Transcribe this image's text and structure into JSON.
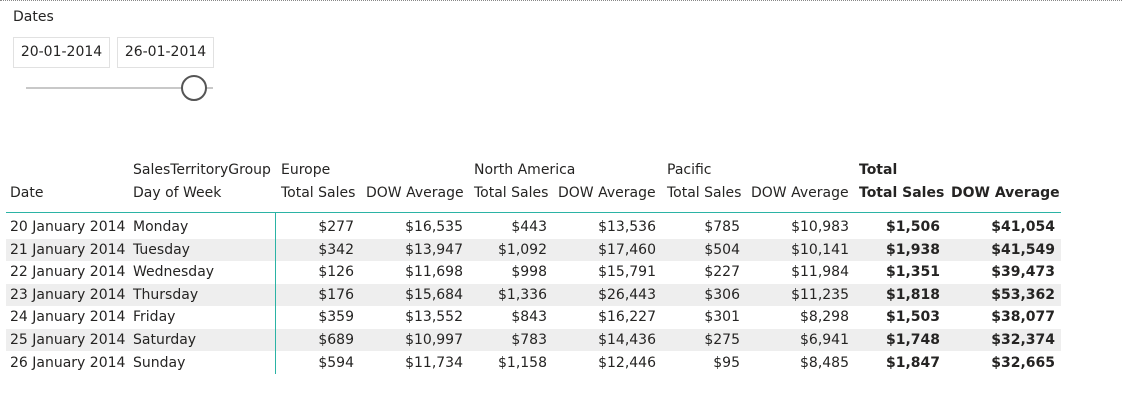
{
  "slicer": {
    "title": "Dates",
    "start": "20-01-2014",
    "end": "26-01-2014"
  },
  "table": {
    "row_header_group": "SalesTerritoryGroup",
    "row_headers": [
      "Date",
      "Day of Week"
    ],
    "groups": [
      {
        "name": "Europe",
        "columns": [
          "Total Sales",
          "DOW Average"
        ]
      },
      {
        "name": "North America",
        "columns": [
          "Total Sales",
          "DOW Average"
        ]
      },
      {
        "name": "Pacific",
        "columns": [
          "Total Sales",
          "DOW Average"
        ]
      },
      {
        "name": "Total",
        "columns": [
          "Total Sales",
          "DOW Average"
        ]
      }
    ],
    "rows": [
      [
        "20 January 2014",
        "Monday",
        "$277",
        "$16,535",
        "$443",
        "$13,536",
        "$785",
        "$10,983",
        "$1,506",
        "$41,054"
      ],
      [
        "21 January 2014",
        "Tuesday",
        "$342",
        "$13,947",
        "$1,092",
        "$17,460",
        "$504",
        "$10,141",
        "$1,938",
        "$41,549"
      ],
      [
        "22 January 2014",
        "Wednesday",
        "$126",
        "$11,698",
        "$998",
        "$15,791",
        "$227",
        "$11,984",
        "$1,351",
        "$39,473"
      ],
      [
        "23 January 2014",
        "Thursday",
        "$176",
        "$15,684",
        "$1,336",
        "$26,443",
        "$306",
        "$11,235",
        "$1,818",
        "$53,362"
      ],
      [
        "24 January 2014",
        "Friday",
        "$359",
        "$13,552",
        "$843",
        "$16,227",
        "$301",
        "$8,298",
        "$1,503",
        "$38,077"
      ],
      [
        "25 January 2014",
        "Saturday",
        "$689",
        "$10,997",
        "$783",
        "$14,436",
        "$275",
        "$6,941",
        "$1,748",
        "$32,374"
      ],
      [
        "26 January 2014",
        "Sunday",
        "$594",
        "$11,734",
        "$1,158",
        "$12,446",
        "$95",
        "$8,485",
        "$1,847",
        "$32,665"
      ]
    ]
  }
}
